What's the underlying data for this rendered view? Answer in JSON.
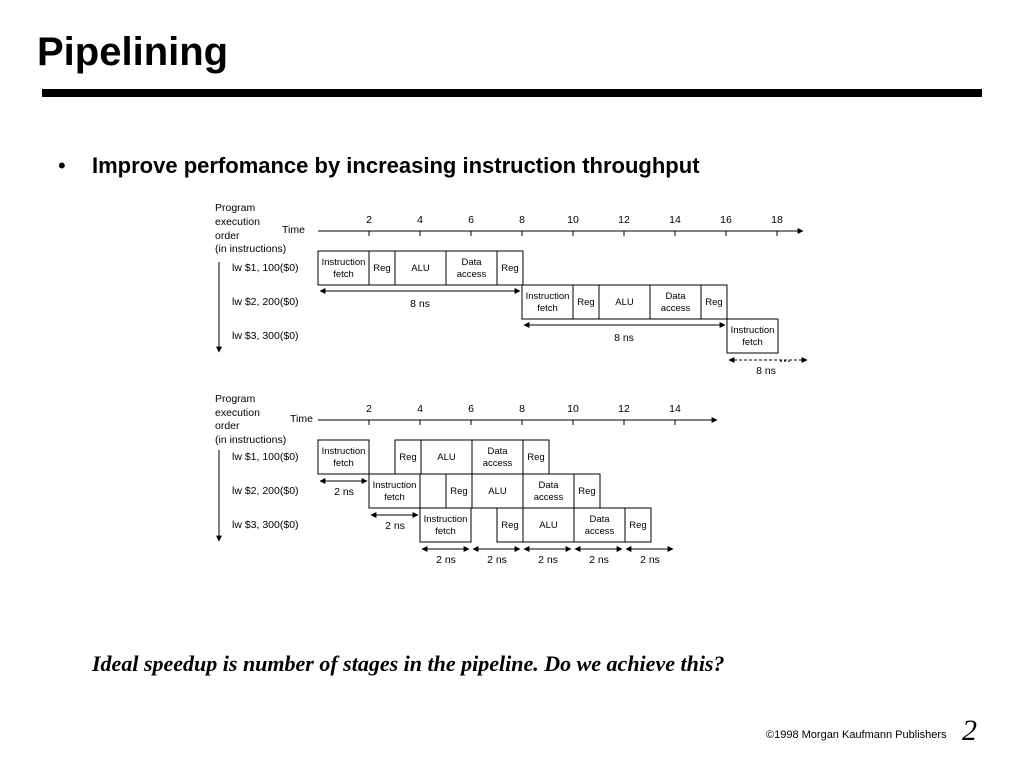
{
  "slide": {
    "title": "Pipelining",
    "bullet": "Improve perfomance by increasing instruction throughput",
    "question": "Ideal speedup is number of stages in the pipeline.  Do we achieve this?",
    "footer": "©1998 Morgan Kaufmann Publishers",
    "page_number": "2"
  },
  "stages": {
    "if": [
      "Instruction",
      "fetch"
    ],
    "reg": "Reg",
    "alu": "ALU",
    "mem": [
      "Data",
      "access"
    ]
  },
  "single_cycle": {
    "order_label": [
      "Program",
      "execution",
      "order",
      "(in instructions)"
    ],
    "time_label": "Time",
    "ticks": [
      "2",
      "4",
      "6",
      "8",
      "10",
      "12",
      "14",
      "16",
      "18"
    ],
    "instructions": [
      "lw $1, 100($0)",
      "lw $2, 200($0)",
      "lw $3, 300($0)"
    ],
    "cycle_label": "8 ns",
    "ellipsis": "..."
  },
  "pipelined": {
    "order_label": [
      "Program",
      "execution",
      "order",
      "(in instructions)"
    ],
    "time_label": "Time",
    "ticks": [
      "2",
      "4",
      "6",
      "8",
      "10",
      "12",
      "14"
    ],
    "instructions": [
      "lw $1, 100($0)",
      "lw $2, 200($0)",
      "lw $3, 300($0)"
    ],
    "stage_label": "2 ns"
  }
}
